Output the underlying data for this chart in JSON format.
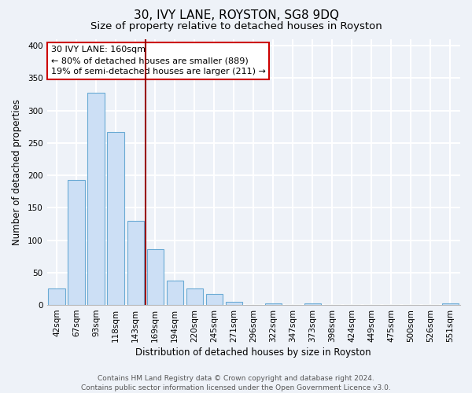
{
  "title": "30, IVY LANE, ROYSTON, SG8 9DQ",
  "subtitle": "Size of property relative to detached houses in Royston",
  "xlabel": "Distribution of detached houses by size in Royston",
  "ylabel": "Number of detached properties",
  "bar_labels": [
    "42sqm",
    "67sqm",
    "93sqm",
    "118sqm",
    "143sqm",
    "169sqm",
    "194sqm",
    "220sqm",
    "245sqm",
    "271sqm",
    "296sqm",
    "322sqm",
    "347sqm",
    "373sqm",
    "398sqm",
    "424sqm",
    "449sqm",
    "475sqm",
    "500sqm",
    "526sqm",
    "551sqm"
  ],
  "bar_values": [
    25,
    193,
    328,
    267,
    130,
    86,
    38,
    26,
    17,
    5,
    0,
    3,
    0,
    3,
    0,
    0,
    0,
    0,
    0,
    0,
    2
  ],
  "bar_color": "#ccdff5",
  "bar_edge_color": "#6aaad4",
  "ylim": [
    0,
    410
  ],
  "yticks": [
    0,
    50,
    100,
    150,
    200,
    250,
    300,
    350,
    400
  ],
  "vline_color": "#990000",
  "annotation_title": "30 IVY LANE: 160sqm",
  "annotation_line1": "← 80% of detached houses are smaller (889)",
  "annotation_line2": "19% of semi-detached houses are larger (211) →",
  "footer1": "Contains HM Land Registry data © Crown copyright and database right 2024.",
  "footer2": "Contains public sector information licensed under the Open Government Licence v3.0.",
  "background_color": "#eef2f8",
  "grid_color": "#ffffff",
  "title_fontsize": 11,
  "subtitle_fontsize": 9.5,
  "axis_label_fontsize": 8.5,
  "tick_fontsize": 7.5,
  "footer_fontsize": 6.5
}
